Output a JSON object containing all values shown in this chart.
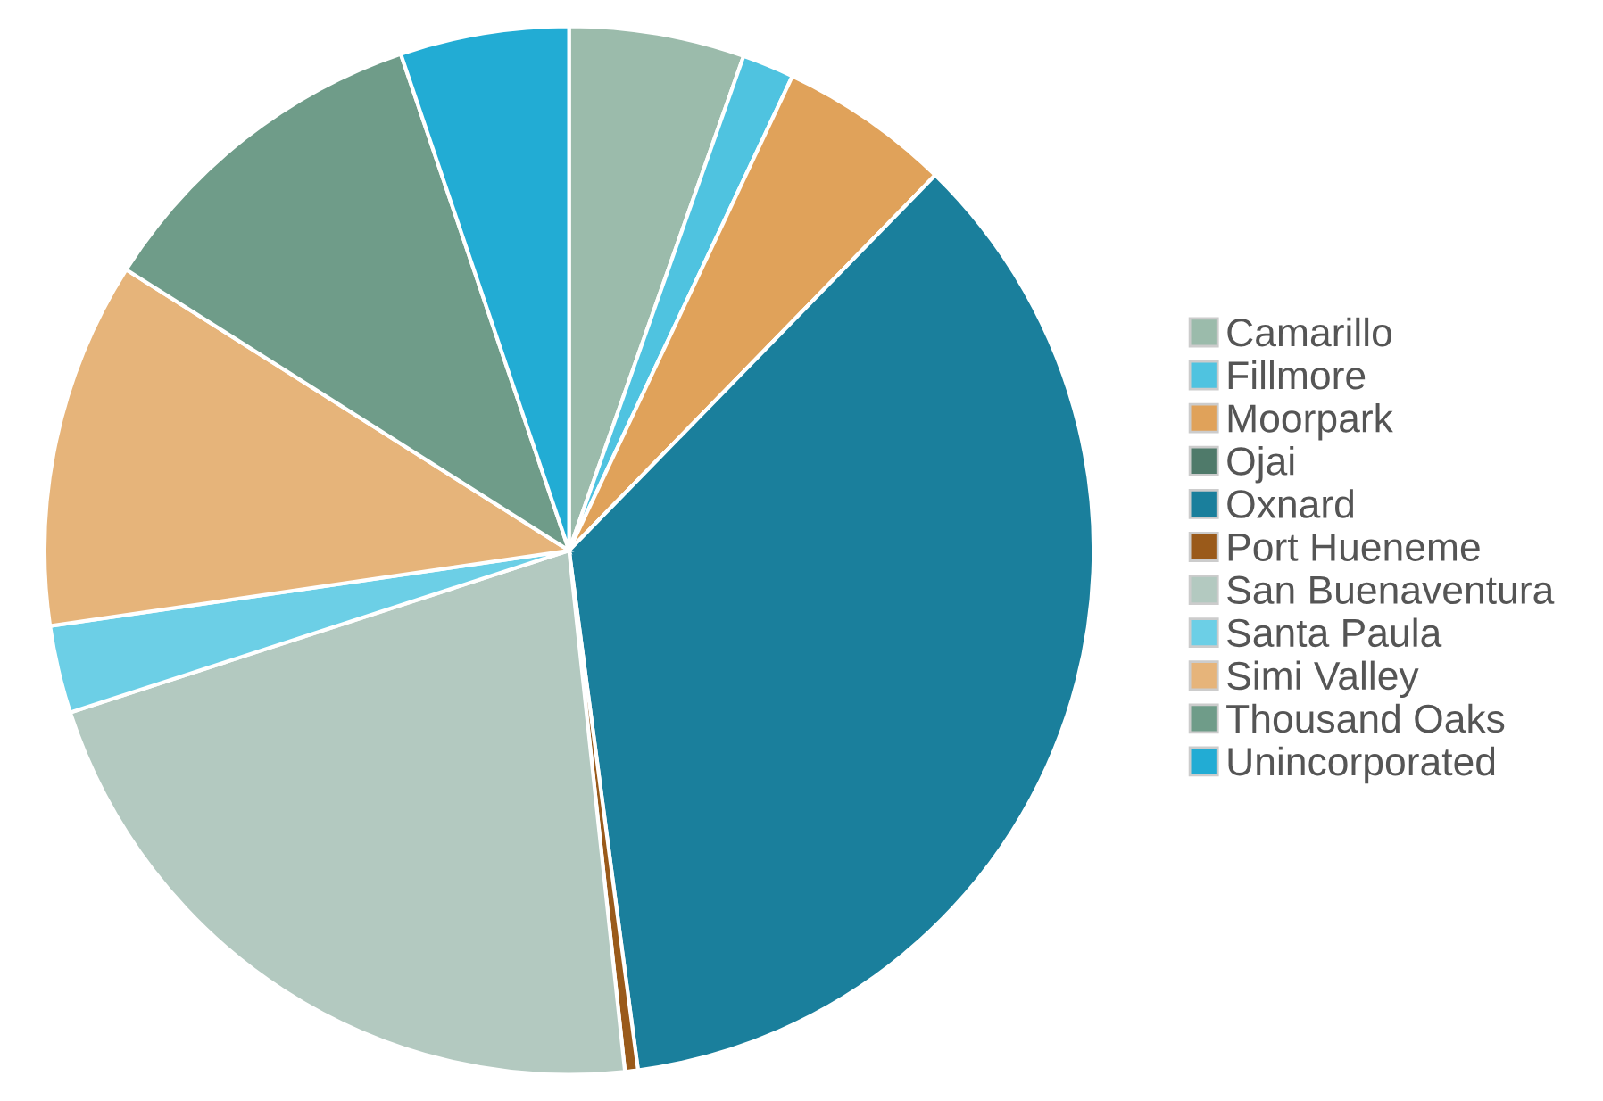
{
  "chart_data": {
    "type": "pie",
    "categories": [
      "Camarillo",
      "Fillmore",
      "Moorpark",
      "Ojai",
      "Oxnard",
      "Port Hueneme",
      "San Buenaventura",
      "Santa Paula",
      "Simi Valley",
      "Thousand Oaks",
      "Unincorporated"
    ],
    "values": [
      5.4,
      1.6,
      5.3,
      0,
      35.6,
      0.4,
      21.7,
      2.7,
      11.3,
      10.8,
      5.2
    ],
    "colors": [
      "#9bbbab",
      "#4fc3e0",
      "#e0a25a",
      "#4f7a6a",
      "#1a7f9c",
      "#9a5a1a",
      "#b3c9c0",
      "#6ccfe6",
      "#e6b47a",
      "#6f9c89",
      "#22acd4"
    ],
    "legend": "right"
  }
}
